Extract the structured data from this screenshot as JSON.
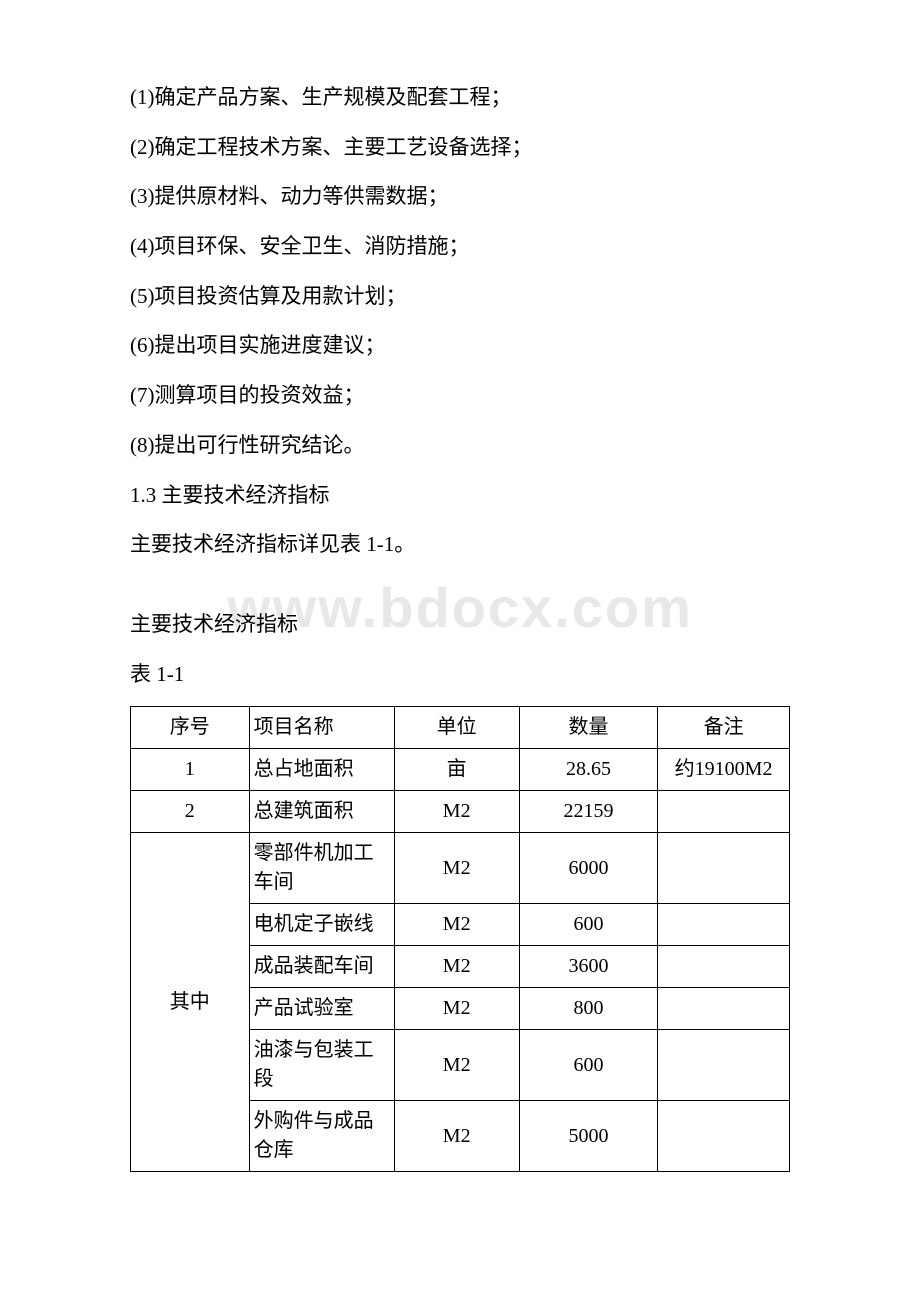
{
  "watermark": "www.bdocx.com",
  "paragraphs": [
    "(1)确定产品方案、生产规模及配套工程；",
    "(2)确定工程技术方案、主要工艺设备选择；",
    "(3)提供原材料、动力等供需数据；",
    "(4)项目环保、安全卫生、消防措施；",
    "(5)项目投资估算及用款计划；",
    "(6)提出项目实施进度建议；",
    "(7)测算项目的投资效益；",
    "(8)提出可行性研究结论。"
  ],
  "section_heading": "1.3 主要技术经济指标",
  "section_intro": "主要技术经济指标详见表 1-1。",
  "table_caption": "主要技术经济指标",
  "table_label": "表 1-1",
  "table": {
    "header": {
      "c1": "序号",
      "c2": "项目名称",
      "c3": "单位",
      "c4": "数量",
      "c5": "备注"
    },
    "row1": {
      "c1": "1",
      "c2": "总占地面积",
      "c3": "亩",
      "c4": "28.65",
      "c5": "约19100M2"
    },
    "row2": {
      "c1": "2",
      "c2": "总建筑面积",
      "c3": "M2",
      "c4": "22159",
      "c5": ""
    },
    "group_label": "其中",
    "group_rows": {
      "r1": {
        "c2": "零部件机加工车间",
        "c3": "M2",
        "c4": "6000",
        "c5": ""
      },
      "r2": {
        "c2": "电机定子嵌线",
        "c3": "M2",
        "c4": "600",
        "c5": ""
      },
      "r3": {
        "c2": "成品装配车间",
        "c3": "M2",
        "c4": "3600",
        "c5": ""
      },
      "r4": {
        "c2": "产品试验室",
        "c3": "M2",
        "c4": "800",
        "c5": ""
      },
      "r5": {
        "c2": "油漆与包装工段",
        "c3": "M2",
        "c4": "600",
        "c5": ""
      },
      "r6": {
        "c2": "外购件与成品仓库",
        "c3": "M2",
        "c4": "5000",
        "c5": ""
      }
    }
  }
}
